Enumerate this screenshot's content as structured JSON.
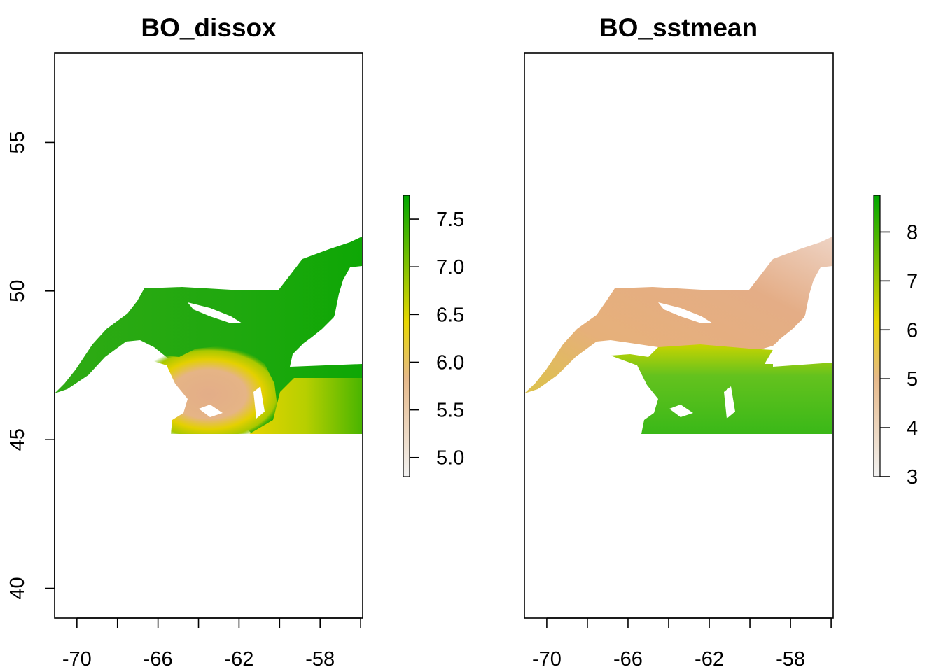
{
  "chart_data": [
    {
      "type": "heatmap",
      "title": "BO_dissox",
      "xlabel": "",
      "ylabel": "",
      "xlim": [
        -71.1,
        -55.9
      ],
      "ylim": [
        39.0,
        58.0
      ],
      "x_ticks": [
        -70,
        -68,
        -66,
        -64,
        -62,
        -60,
        -58,
        -56
      ],
      "x_tick_labels": [
        "-70",
        "-66",
        "-62",
        "-58"
      ],
      "x_labeled_ticks": [
        -70,
        -66,
        -62,
        -58
      ],
      "y_ticks": [
        40,
        45,
        50,
        55
      ],
      "y_tick_labels": [
        "40",
        "45",
        "50",
        "55"
      ],
      "show_y_axis": true,
      "data_extent": {
        "lon": [
          -71.1,
          -55.9
        ],
        "lat": [
          45.5,
          52.0
        ]
      },
      "legend": {
        "position": "right",
        "range": [
          4.8,
          7.75
        ],
        "ticks": [
          5.0,
          5.5,
          6.0,
          6.5,
          7.0,
          7.5
        ],
        "tick_labels": [
          "5.0",
          "5.5",
          "6.0",
          "6.5",
          "7.0",
          "7.5"
        ]
      },
      "colors": {
        "low": "#f2f2f2",
        "mid_low": "#e6b98a",
        "mid": "#e8d700",
        "high": "#00a600"
      },
      "grid": false
    },
    {
      "type": "heatmap",
      "title": "BO_sstmean",
      "xlabel": "",
      "ylabel": "",
      "xlim": [
        -71.1,
        -55.9
      ],
      "ylim": [
        39.0,
        58.0
      ],
      "x_ticks": [
        -70,
        -68,
        -66,
        -64,
        -62,
        -60,
        -58,
        -56
      ],
      "x_tick_labels": [
        "-70",
        "-66",
        "-62",
        "-58"
      ],
      "x_labeled_ticks": [
        -70,
        -66,
        -62,
        -58
      ],
      "y_ticks": [],
      "y_tick_labels": [],
      "show_y_axis": false,
      "data_extent": {
        "lon": [
          -71.1,
          -55.9
        ],
        "lat": [
          45.5,
          52.0
        ]
      },
      "legend": {
        "position": "right",
        "range": [
          3.0,
          8.75
        ],
        "ticks": [
          3,
          4,
          5,
          6,
          7,
          8
        ],
        "tick_labels": [
          "3",
          "4",
          "5",
          "6",
          "7",
          "8"
        ]
      },
      "colors": {
        "low": "#f2f2f2",
        "mid_low": "#e6b98a",
        "mid": "#e8d700",
        "high": "#00a600"
      },
      "grid": false
    }
  ]
}
